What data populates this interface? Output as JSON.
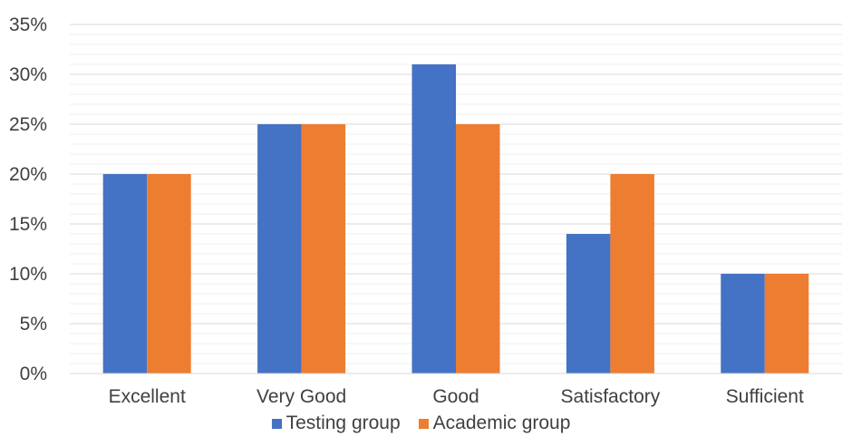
{
  "chart_data": {
    "type": "bar",
    "categories": [
      "Excellent",
      "Very Good",
      "Good",
      "Satisfactory",
      "Sufficient"
    ],
    "series": [
      {
        "name": "Testing group",
        "values": [
          20,
          25,
          31,
          14,
          10
        ],
        "color": "#4472c4"
      },
      {
        "name": "Academic group",
        "values": [
          20,
          25,
          25,
          20,
          10
        ],
        "color": "#ed7d31"
      }
    ],
    "yticks": [
      "0%",
      "5%",
      "10%",
      "15%",
      "20%",
      "25%",
      "30%",
      "35%"
    ],
    "ylim": [
      0,
      35
    ],
    "unit": "%",
    "grid": true,
    "legend_position": "bottom"
  }
}
